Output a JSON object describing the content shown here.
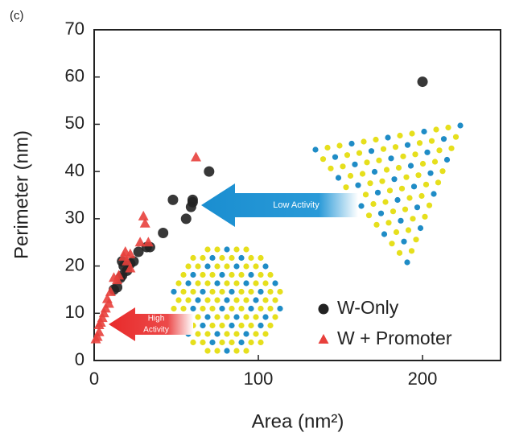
{
  "chart_data": {
    "type": "scatter",
    "panel_label": "(c)",
    "x_label": "Area (nm²)",
    "y_label": "Perimeter (nm)",
    "xlim": [
      0,
      250
    ],
    "ylim": [
      0,
      70
    ],
    "xticks": [
      0,
      100,
      200
    ],
    "yticks": [
      0,
      10,
      20,
      30,
      40,
      50,
      60,
      70
    ],
    "legend": "lower right",
    "grid": false,
    "annotations": [
      "Low Activity",
      "High",
      "Activity"
    ],
    "series": [
      {
        "name": "W-Only",
        "color": "#222222",
        "marker": "circle",
        "x": [
          200,
          70,
          60,
          60,
          59,
          56,
          48,
          42,
          34,
          32,
          27,
          24,
          22,
          20,
          18,
          17,
          17,
          16,
          14,
          12
        ],
        "y": [
          59,
          40,
          34,
          33.5,
          32.5,
          30,
          34,
          27,
          24,
          24,
          23,
          21,
          20.5,
          19,
          20,
          21,
          18,
          17.5,
          15.5,
          15
        ]
      },
      {
        "name": "W + Promoter",
        "color": "#e8403c",
        "marker": "triangle",
        "x": [
          62,
          30,
          31,
          28,
          33,
          19,
          22,
          18,
          20,
          22,
          15,
          14,
          12,
          10,
          8,
          9,
          7,
          6,
          5,
          4,
          3,
          3,
          2,
          1
        ],
        "y": [
          43,
          30.5,
          29,
          25,
          25,
          23,
          22.5,
          22,
          21,
          19.5,
          18,
          17,
          17.5,
          14.5,
          13,
          12,
          11,
          10,
          9,
          8,
          7.5,
          6,
          5,
          4.5
        ]
      }
    ]
  }
}
